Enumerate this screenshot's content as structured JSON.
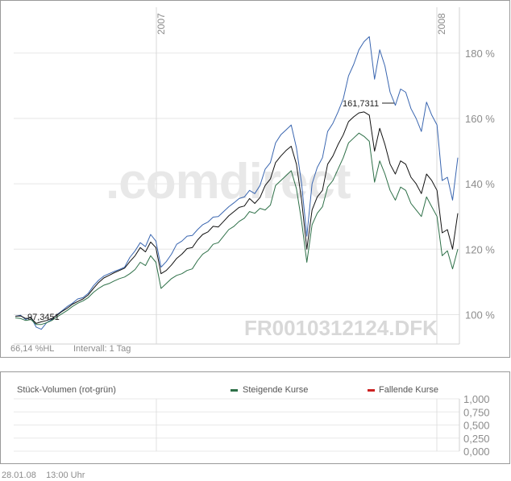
{
  "chart_data": [
    {
      "type": "line",
      "ylabels": [
        "180 %",
        "160 %",
        "140 %",
        "120 %",
        "100 %"
      ],
      "yvalues": [
        180,
        160,
        140,
        120,
        100
      ],
      "ylim": [
        91,
        194
      ],
      "xlabels": [
        "2007",
        "2008"
      ],
      "grid": true,
      "watermark": ".comdirect",
      "symbol": "FR0010312124.DFK",
      "info_left": "66,14 %HL",
      "info_right": "Intervall: 1 Tag",
      "annotations": {
        "low": "97,3451",
        "high": "161,7311"
      },
      "series": [
        {
          "color": "#3a66b0",
          "values": [
            99.5,
            99.8,
            98.5,
            99.2,
            96.2,
            95.5,
            97.5,
            98.5,
            100.0,
            101.2,
            102.5,
            103.5,
            104.8,
            105.2,
            106.5,
            108.8,
            110.5,
            111.8,
            112.5,
            113.2,
            113.8,
            114.5,
            117.5,
            119.5,
            122.0,
            120.8,
            124.5,
            122.5,
            114.5,
            116.2,
            118.5,
            121.5,
            122.5,
            124.0,
            124.2,
            126.0,
            127.5,
            128.3,
            129.8,
            130.0,
            131.5,
            133.0,
            134.2,
            135.5,
            136.0,
            138.0,
            137.0,
            139.5,
            144.5,
            146.5,
            152.5,
            155.0,
            156.5,
            158.0,
            151.0,
            140.0,
            124.0,
            140.0,
            145.0,
            148.0,
            156.0,
            158.5,
            162.0,
            166.0,
            173.0,
            176.5,
            181.0,
            183.5,
            185.0,
            172.0,
            181.0,
            176.0,
            168.0,
            164.0,
            169.0,
            168.0,
            163.0,
            160.0,
            156.0,
            165.0,
            161.0,
            158.0,
            141.0,
            142.0,
            135.0,
            148.0
          ]
        },
        {
          "color": "#111111",
          "values": [
            99.5,
            99.6,
            98.8,
            99.0,
            97.3,
            97.8,
            98.2,
            98.8,
            99.8,
            101.0,
            102.0,
            103.2,
            104.0,
            104.8,
            106.0,
            108.0,
            109.8,
            111.2,
            112.0,
            112.8,
            113.5,
            114.2,
            116.2,
            118.0,
            120.5,
            119.2,
            122.2,
            120.5,
            112.5,
            113.5,
            115.2,
            117.2,
            118.5,
            120.2,
            120.5,
            122.8,
            124.5,
            125.3,
            127.0,
            126.8,
            128.5,
            130.2,
            131.5,
            132.8,
            133.2,
            135.5,
            134.0,
            135.8,
            139.5,
            141.5,
            146.5,
            148.5,
            150.2,
            151.5,
            146.0,
            135.0,
            120.0,
            132.0,
            136.0,
            138.0,
            146.0,
            148.5,
            152.0,
            155.0,
            159.0,
            160.5,
            161.7,
            162.0,
            161.0,
            150.0,
            157.0,
            152.0,
            146.0,
            143.0,
            147.0,
            146.0,
            142.0,
            140.0,
            137.0,
            143.0,
            141.0,
            138.0,
            125.0,
            126.0,
            120.0,
            131.0
          ]
        },
        {
          "color": "#2e7048",
          "values": [
            99.0,
            98.8,
            98.2,
            98.5,
            97.0,
            97.0,
            97.5,
            98.2,
            99.3,
            100.3,
            101.3,
            102.5,
            103.5,
            104.2,
            105.2,
            106.8,
            108.0,
            109.0,
            109.5,
            110.3,
            111.0,
            111.5,
            112.5,
            113.8,
            116.0,
            115.0,
            118.0,
            116.0,
            108.0,
            109.5,
            111.0,
            112.0,
            112.5,
            113.5,
            114.0,
            116.5,
            118.5,
            119.5,
            121.5,
            122.0,
            124.0,
            126.0,
            127.0,
            128.5,
            129.5,
            131.5,
            131.0,
            132.5,
            132.0,
            133.5,
            139.5,
            141.0,
            142.5,
            144.0,
            138.5,
            128.5,
            116.0,
            127.5,
            131.0,
            133.0,
            139.0,
            141.0,
            144.5,
            148.0,
            152.5,
            154.0,
            155.5,
            154.5,
            153.0,
            140.5,
            147.0,
            143.0,
            138.0,
            135.0,
            139.0,
            138.0,
            134.0,
            132.0,
            130.0,
            136.0,
            133.0,
            130.0,
            118.0,
            119.5,
            114.0,
            120.0
          ]
        }
      ]
    },
    {
      "type": "bar",
      "title": "Stück-Volumen (rot-grün)",
      "legend": [
        {
          "label": "Steigende Kurse",
          "color": "#2e7048"
        },
        {
          "label": "Fallende Kurse",
          "color": "#cc2222"
        }
      ],
      "ylabels": [
        "1,000",
        "0,750",
        "0,500",
        "0,250",
        "0,000"
      ],
      "ylim": [
        0,
        1
      ],
      "values": []
    }
  ],
  "footer": {
    "date": "28.01.08",
    "time": "13:00 Uhr"
  }
}
